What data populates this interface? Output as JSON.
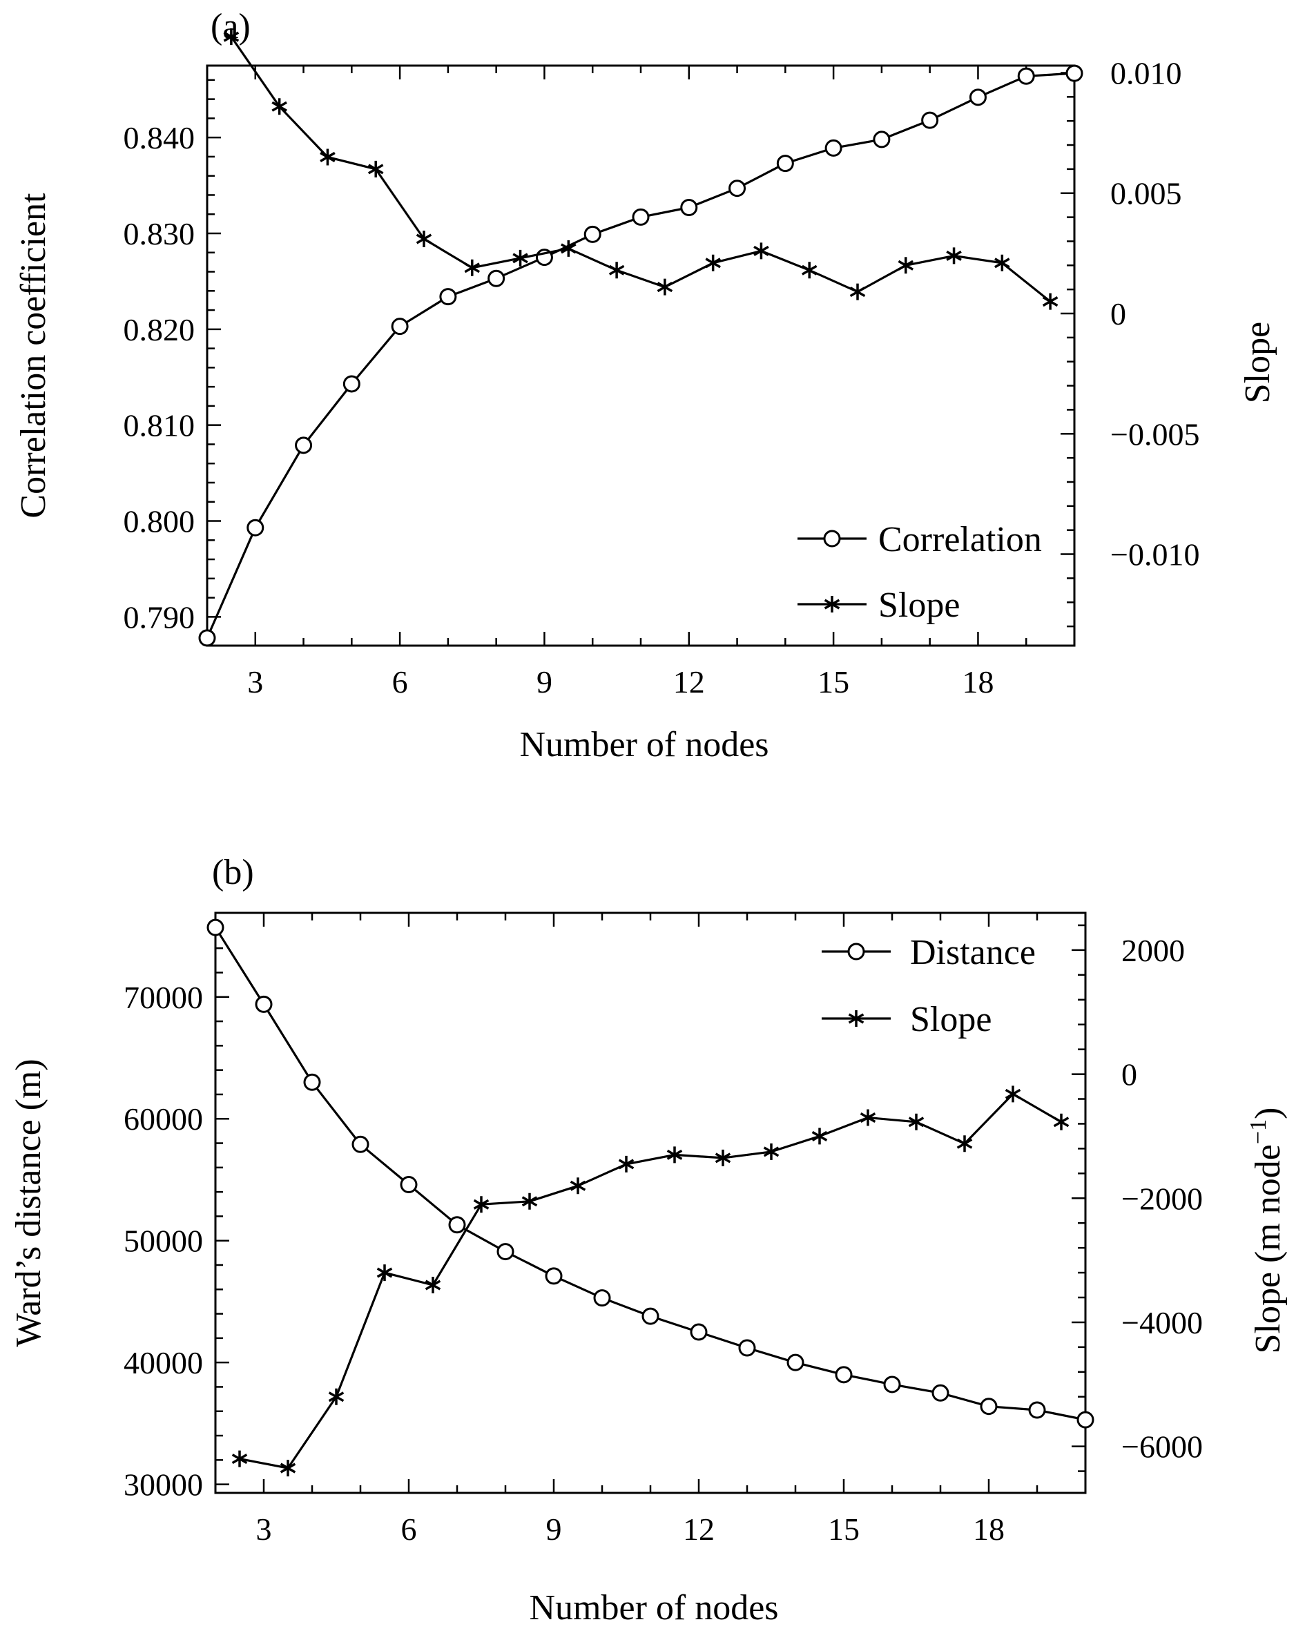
{
  "chart_data": [
    {
      "panel_label": "(a)",
      "type": "line",
      "xlabel": "Number of nodes",
      "ylabel": "Correlation coefficient",
      "y2label": "Slope",
      "xlim": [
        2,
        20
      ],
      "ylim": [
        0.787,
        0.8475
      ],
      "y2lim": [
        -0.0138,
        0.0103
      ],
      "xticks": [
        3,
        6,
        9,
        12,
        15,
        18
      ],
      "yticks": [
        0.79,
        0.8,
        0.81,
        0.82,
        0.83,
        0.84
      ],
      "ytick_labels": [
        "0.790",
        "0.800",
        "0.810",
        "0.820",
        "0.830",
        "0.840"
      ],
      "y2ticks": [
        0.01,
        0.005,
        0,
        -0.005,
        -0.01
      ],
      "y2tick_labels": [
        "0.010",
        "0.005",
        "0",
        "−0.005",
        "−0.010"
      ],
      "legend_position": "bottom-right",
      "series": [
        {
          "name": "Correlation",
          "marker": "circle",
          "axis": "left",
          "x": [
            2,
            3,
            4,
            5,
            6,
            7,
            8,
            9,
            10,
            11,
            12,
            13,
            14,
            15,
            16,
            17,
            18,
            19,
            20
          ],
          "y": [
            0.7878,
            0.7993,
            0.8079,
            0.8143,
            0.8203,
            0.8234,
            0.8253,
            0.8275,
            0.8299,
            0.8317,
            0.8327,
            0.8347,
            0.8373,
            0.8389,
            0.8398,
            0.8418,
            0.8442,
            0.8464,
            0.8467
          ]
        },
        {
          "name": "Slope",
          "marker": "star",
          "axis": "right",
          "x": [
            2.5,
            3.5,
            4.5,
            5.5,
            6.5,
            7.5,
            8.5,
            9.5,
            10.5,
            11.5,
            12.5,
            13.5,
            14.5,
            15.5,
            16.5,
            17.5,
            18.5,
            19.5
          ],
          "y": [
            0.0115,
            0.0086,
            0.0065,
            0.006,
            0.0031,
            0.0019,
            0.0023,
            0.0027,
            0.0018,
            0.0011,
            0.0021,
            0.0026,
            0.0018,
            0.0009,
            0.002,
            0.0024,
            0.0021,
            0.0005
          ]
        }
      ]
    },
    {
      "panel_label": "(b)",
      "type": "line",
      "xlabel": "Number of nodes",
      "ylabel": "Ward’s distance (m)",
      "y2label_main": "Slope (m node",
      "y2label_sup": "−1",
      "y2label_close": ")",
      "xlim": [
        2,
        20
      ],
      "ylim": [
        29300,
        76900
      ],
      "y2lim": [
        -6750,
        2600
      ],
      "xticks": [
        3,
        6,
        9,
        12,
        15,
        18
      ],
      "yticks": [
        30000,
        40000,
        50000,
        60000,
        70000
      ],
      "ytick_labels": [
        "30000",
        "40000",
        "50000",
        "60000",
        "70000"
      ],
      "y2ticks": [
        2000,
        0,
        -2000,
        -4000,
        -6000
      ],
      "y2tick_labels": [
        "2000",
        "0",
        "−2000",
        "−4000",
        "−6000"
      ],
      "legend_position": "top-right",
      "series": [
        {
          "name": "Distance",
          "marker": "circle",
          "axis": "left",
          "x": [
            2,
            3,
            4,
            5,
            6,
            7,
            8,
            9,
            10,
            11,
            12,
            13,
            14,
            15,
            16,
            17,
            18,
            19,
            20
          ],
          "y": [
            75700,
            69400,
            63000,
            57900,
            54600,
            51300,
            49100,
            47100,
            45300,
            43800,
            42500,
            41200,
            40000,
            39000,
            38200,
            37500,
            36400,
            36100,
            35300
          ]
        },
        {
          "name": "Slope",
          "marker": "star",
          "axis": "right",
          "x": [
            2.5,
            3.5,
            4.5,
            5.5,
            6.5,
            7.5,
            8.5,
            9.5,
            10.5,
            11.5,
            12.5,
            13.5,
            14.5,
            15.5,
            16.5,
            17.5,
            18.5,
            19.5
          ],
          "y": [
            -6200,
            -6350,
            -5200,
            -3200,
            -3400,
            -2100,
            -2050,
            -1800,
            -1450,
            -1300,
            -1350,
            -1250,
            -1000,
            -700,
            -770,
            -1120,
            -320,
            -770
          ]
        }
      ]
    }
  ]
}
